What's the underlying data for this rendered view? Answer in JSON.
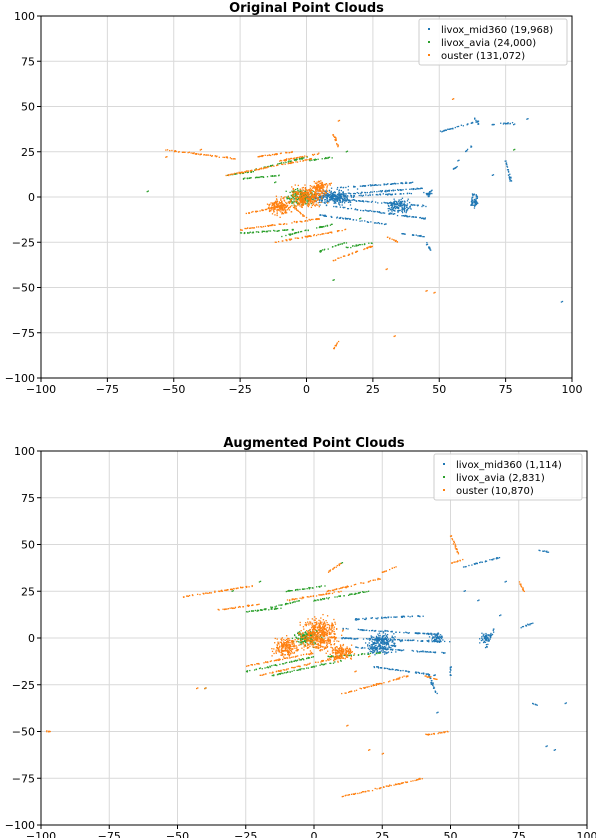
{
  "colors": {
    "livox_mid360": "#1f77b4",
    "livox_avia": "#2ca02c",
    "ouster": "#ff7f0e",
    "grid": "#d9d9d9",
    "axes": "#000000"
  },
  "chart_data": [
    {
      "type": "scatter",
      "title": "Original Point Clouds",
      "xlabel": "",
      "ylabel": "",
      "xlim": [
        -100,
        100
      ],
      "ylim": [
        -100,
        100
      ],
      "xticks": [
        -100,
        -75,
        -50,
        -25,
        0,
        25,
        50,
        75,
        100
      ],
      "yticks": [
        -100,
        -75,
        -50,
        -25,
        0,
        25,
        50,
        75,
        100
      ],
      "xtick_labels": [
        "−100",
        "−75",
        "−50",
        "−25",
        "0",
        "25",
        "50",
        "75",
        "100"
      ],
      "ytick_labels": [
        "−100",
        "−75",
        "−50",
        "−25",
        "0",
        "25",
        "50",
        "75",
        "100"
      ],
      "grid": true,
      "legend_position": "top-right",
      "series": [
        {
          "name": "livox_mid360",
          "legend_label": "livox_mid360 (19,968)",
          "color": "#1f77b4",
          "segments": [
            [
              0,
              0,
              45,
              -5
            ],
            [
              0,
              0,
              45,
              5
            ],
            [
              5,
              0,
              40,
              2
            ],
            [
              10,
              -5,
              45,
              -12
            ],
            [
              10,
              5,
              40,
              8
            ],
            [
              50,
              36,
              65,
              42
            ],
            [
              63,
              44,
              65,
              40
            ],
            [
              62,
              -5,
              63,
              2
            ],
            [
              64,
              -5,
              64,
              2
            ],
            [
              46,
              0,
              47,
              4
            ],
            [
              35,
              -20,
              45,
              -22
            ],
            [
              45,
              -25,
              47,
              -30
            ],
            [
              55,
              15,
              58,
              18
            ],
            [
              60,
              25,
              62,
              28
            ],
            [
              70,
              40,
              78,
              41
            ],
            [
              75,
              20,
              77,
              9
            ],
            [
              5,
              -10,
              30,
              -15
            ]
          ],
          "clusters": [
            [
              10,
              0,
              10,
              6
            ],
            [
              35,
              -5,
              6,
              6
            ],
            [
              63,
              -3,
              2,
              4
            ],
            [
              46,
              2,
              2,
              2
            ]
          ],
          "points": [
            [
              96,
              -58
            ],
            [
              83,
              43
            ],
            [
              78,
              40
            ],
            [
              70,
              12
            ],
            [
              57,
              20
            ]
          ]
        },
        {
          "name": "livox_avia",
          "legend_label": "livox_avia (24,000)",
          "color": "#2ca02c",
          "segments": [
            [
              -20,
              15,
              0,
              22
            ],
            [
              -10,
              -22,
              10,
              -15
            ],
            [
              -25,
              -20,
              -5,
              -18
            ],
            [
              5,
              -30,
              15,
              -25
            ],
            [
              15,
              -28,
              25,
              -25
            ],
            [
              0,
              20,
              10,
              22
            ],
            [
              -25,
              10,
              -10,
              12
            ],
            [
              -30,
              12,
              -20,
              14
            ]
          ],
          "clusters": [
            [
              -2,
              0,
              8,
              6
            ]
          ],
          "points": [
            [
              -60,
              3
            ],
            [
              10,
              -46
            ],
            [
              15,
              25
            ],
            [
              20,
              -12
            ],
            [
              78,
              26
            ],
            [
              -10,
              -5
            ],
            [
              -12,
              8
            ]
          ]
        },
        {
          "name": "ouster",
          "legend_label": "ouster (131,072)",
          "color": "#ff7f0e",
          "segments": [
            [
              -26,
              21,
              -53,
              26
            ],
            [
              -10,
              20,
              5,
              24
            ],
            [
              -20,
              22,
              -5,
              25
            ],
            [
              -30,
              12,
              5,
              22
            ],
            [
              -12,
              -25,
              15,
              -18
            ],
            [
              -25,
              -18,
              5,
              -12
            ],
            [
              10,
              -35,
              25,
              -27
            ],
            [
              30,
              -22,
              35,
              -25
            ],
            [
              -25,
              -10,
              -10,
              -5
            ],
            [
              12,
              28,
              10,
              35
            ],
            [
              2,
              5,
              10,
              8
            ],
            [
              -5,
              -5,
              0,
              -12
            ],
            [
              12,
              -80,
              10,
              -84
            ]
          ],
          "clusters": [
            [
              0,
              0,
              9,
              8
            ],
            [
              -10,
              -5,
              6,
              7
            ],
            [
              5,
              5,
              5,
              5
            ]
          ],
          "points": [
            [
              -53,
              22
            ],
            [
              33,
              -77
            ],
            [
              45,
              -52
            ],
            [
              48,
              -53
            ],
            [
              12,
              42
            ],
            [
              -40,
              26
            ],
            [
              -8,
              20
            ],
            [
              55,
              54
            ],
            [
              30,
              -40
            ]
          ]
        }
      ]
    },
    {
      "type": "scatter",
      "title": "Augmented Point Clouds",
      "xlabel": "",
      "ylabel": "",
      "xlim": [
        -100,
        100
      ],
      "ylim": [
        -100,
        100
      ],
      "xticks": [
        -100,
        -75,
        -50,
        -25,
        0,
        25,
        50,
        75,
        100
      ],
      "yticks": [
        -100,
        -75,
        -50,
        -25,
        0,
        25,
        50,
        75,
        100
      ],
      "xtick_labels": [
        "−100",
        "−75",
        "−50",
        "−25",
        "0",
        "25",
        "50",
        "75",
        "100"
      ],
      "ytick_labels": [
        "−100",
        "−75",
        "−50",
        "−25",
        "0",
        "25",
        "50",
        "75",
        "100"
      ],
      "grid": true,
      "legend_position": "top-right",
      "series": [
        {
          "name": "livox_mid360",
          "legend_label": "livox_mid360 (1,114)",
          "color": "#1f77b4",
          "segments": [
            [
              10,
              0,
              50,
              -2
            ],
            [
              10,
              5,
              45,
              2
            ],
            [
              15,
              -5,
              48,
              -8
            ],
            [
              15,
              10,
              40,
              12
            ],
            [
              20,
              -15,
              45,
              -20
            ],
            [
              55,
              38,
              68,
              43
            ],
            [
              63,
              -5,
              66,
              5
            ],
            [
              75,
              5,
              80,
              8
            ],
            [
              42,
              -20,
              45,
              -30
            ],
            [
              50,
              -15,
              50,
              -20
            ],
            [
              82,
              47,
              86,
              46
            ],
            [
              80,
              -35,
              82,
              -36
            ]
          ],
          "clusters": [
            [
              25,
              -3,
              8,
              8
            ],
            [
              45,
              0,
              4,
              4
            ],
            [
              63,
              0,
              3,
              4
            ]
          ],
          "points": [
            [
              85,
              -58
            ],
            [
              88,
              -60
            ],
            [
              92,
              -35
            ],
            [
              45,
              -40
            ],
            [
              55,
              25
            ],
            [
              60,
              20
            ],
            [
              68,
              12
            ],
            [
              70,
              30
            ]
          ]
        },
        {
          "name": "livox_avia",
          "legend_label": "livox_avia (2,831)",
          "color": "#2ca02c",
          "segments": [
            [
              -20,
              15,
              -5,
              20
            ],
            [
              -15,
              -20,
              10,
              -12
            ],
            [
              -25,
              -18,
              0,
              -10
            ],
            [
              -10,
              25,
              5,
              28
            ],
            [
              0,
              20,
              20,
              25
            ],
            [
              5,
              -10,
              25,
              -8
            ],
            [
              -25,
              14,
              -12,
              16
            ]
          ],
          "clusters": [
            [
              -2,
              0,
              7,
              6
            ]
          ],
          "points": [
            [
              -40,
              -27
            ],
            [
              -20,
              30
            ],
            [
              10,
              40
            ],
            [
              -30,
              25
            ]
          ]
        },
        {
          "name": "ouster",
          "legend_label": "ouster (10,870)",
          "color": "#ff7f0e",
          "segments": [
            [
              -48,
              22,
              -22,
              28
            ],
            [
              -35,
              15,
              -20,
              18
            ],
            [
              -10,
              20,
              10,
              25
            ],
            [
              5,
              25,
              25,
              32
            ],
            [
              -20,
              -20,
              10,
              -10
            ],
            [
              -25,
              -15,
              0,
              -8
            ],
            [
              10,
              -30,
              35,
              -20
            ],
            [
              40,
              -52,
              50,
              -50
            ],
            [
              10,
              -85,
              40,
              -75
            ],
            [
              40,
              -20,
              45,
              -22
            ],
            [
              50,
              55,
              53,
              45
            ],
            [
              50,
              40,
              55,
              42
            ],
            [
              75,
              30,
              77,
              25
            ],
            [
              -98,
              -50,
              -97,
              -50
            ],
            [
              5,
              35,
              10,
              40
            ],
            [
              25,
              35,
              30,
              38
            ]
          ],
          "clusters": [
            [
              2,
              2,
              10,
              12
            ],
            [
              -10,
              -5,
              7,
              7
            ],
            [
              10,
              -8,
              6,
              6
            ]
          ],
          "points": [
            [
              -43,
              -27
            ],
            [
              12,
              -47
            ],
            [
              25,
              -62
            ],
            [
              20,
              -60
            ],
            [
              -40,
              -27
            ],
            [
              15,
              -18
            ],
            [
              20,
              -10
            ]
          ]
        }
      ]
    }
  ]
}
